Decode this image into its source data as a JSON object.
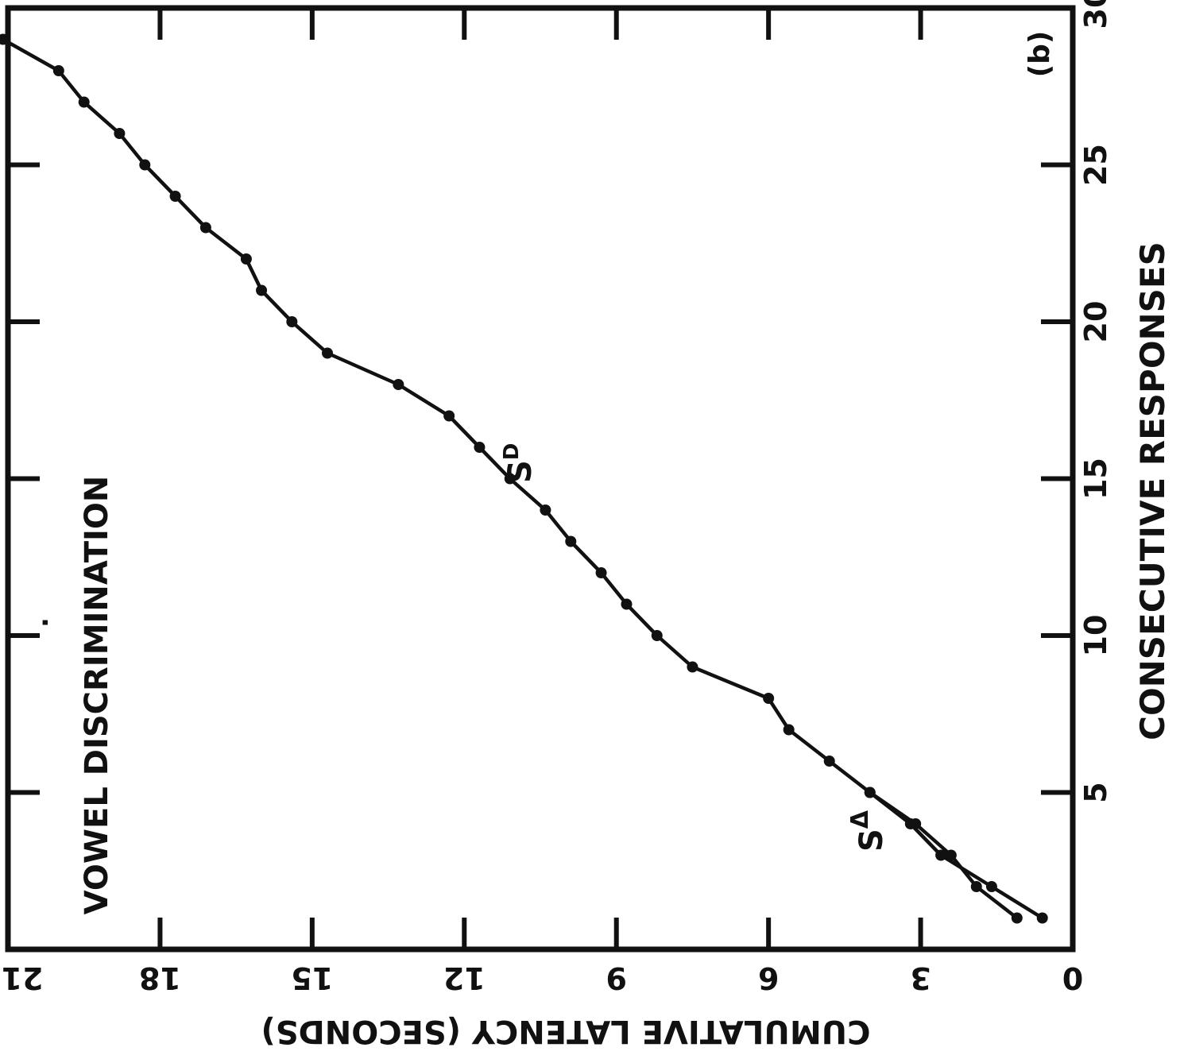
{
  "chart_data": {
    "type": "line",
    "title": "VOWEL DISCRIMINATION",
    "panel_label": "(b)",
    "orientation": "rotated-90",
    "xlabel": "CONSECUTIVE RESPONSES",
    "ylabel": "CUMULATIVE LATENCY (SECONDS)",
    "xlim": [
      0,
      30
    ],
    "ylim": [
      0,
      21
    ],
    "x_ticks": [
      "5",
      "10",
      "15",
      "20",
      "25",
      "30"
    ],
    "y_ticks": [
      "0",
      "3",
      "6",
      "9",
      "12",
      "15",
      "18",
      "21"
    ],
    "grid": false,
    "series": [
      {
        "name": "S D",
        "label_main": "S",
        "label_sup": "D",
        "x": [
          1,
          2,
          3,
          4,
          5,
          6,
          7,
          8,
          9,
          10,
          11,
          12,
          13,
          14,
          15,
          16,
          17,
          18,
          19,
          20,
          21,
          22,
          23,
          24,
          25,
          26,
          27,
          28,
          29
        ],
        "y": [
          0.6,
          1.6,
          2.6,
          3.2,
          4.0,
          4.8,
          5.6,
          6.0,
          7.5,
          8.2,
          8.8,
          9.3,
          9.9,
          10.4,
          11.1,
          11.7,
          12.3,
          13.3,
          14.7,
          15.4,
          16.0,
          16.3,
          17.1,
          17.7,
          18.3,
          18.8,
          19.5,
          20.0,
          21.1
        ]
      },
      {
        "name": "S Δ",
        "label_main": "S",
        "label_sup": "Δ",
        "x": [
          1,
          2,
          3,
          4,
          5
        ],
        "y": [
          1.1,
          1.9,
          2.4,
          3.1,
          4.0
        ]
      }
    ]
  }
}
